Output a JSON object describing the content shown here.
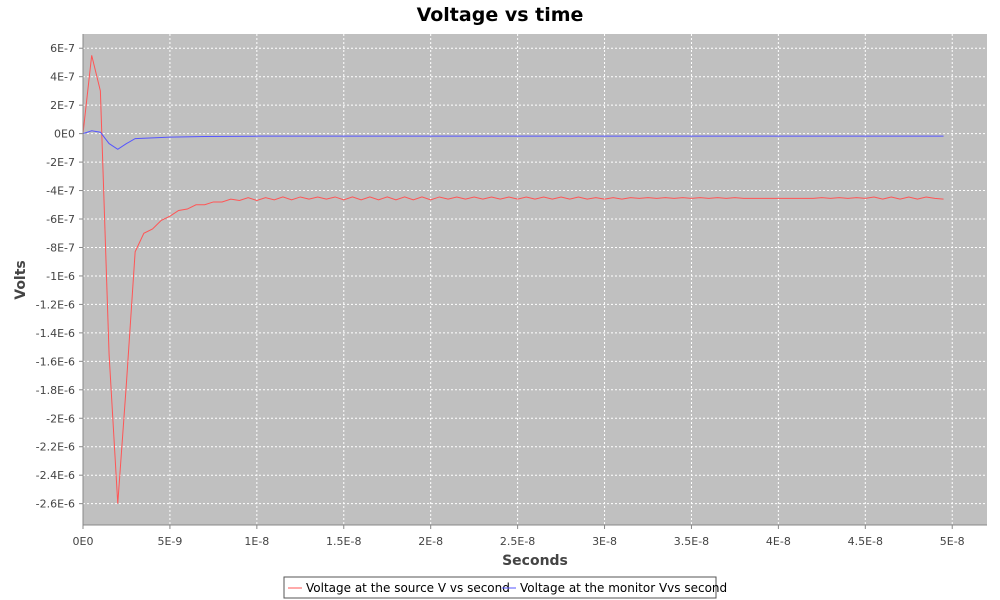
{
  "chart_data": {
    "type": "line",
    "title": "Voltage vs time",
    "xlabel": "Seconds",
    "ylabel": "Volts",
    "xlim": [
      0,
      5.2e-08
    ],
    "ylim": [
      -2.75e-06,
      7e-07
    ],
    "grid": true,
    "legend_position": "bottom",
    "x_ticks": [
      {
        "value": 0,
        "label": "0E0"
      },
      {
        "value": 5e-09,
        "label": "5E-9"
      },
      {
        "value": 1e-08,
        "label": "1E-8"
      },
      {
        "value": 1.5e-08,
        "label": "1.5E-8"
      },
      {
        "value": 2e-08,
        "label": "2E-8"
      },
      {
        "value": 2.5e-08,
        "label": "2.5E-8"
      },
      {
        "value": 3e-08,
        "label": "3E-8"
      },
      {
        "value": 3.5e-08,
        "label": "3.5E-8"
      },
      {
        "value": 4e-08,
        "label": "4E-8"
      },
      {
        "value": 4.5e-08,
        "label": "4.5E-8"
      },
      {
        "value": 5e-08,
        "label": "5E-8"
      }
    ],
    "y_ticks": [
      {
        "value": 6e-07,
        "label": "6E-7"
      },
      {
        "value": 4e-07,
        "label": "4E-7"
      },
      {
        "value": 2e-07,
        "label": "2E-7"
      },
      {
        "value": 0,
        "label": "0E0"
      },
      {
        "value": -2e-07,
        "label": "-2E-7"
      },
      {
        "value": -4e-07,
        "label": "-4E-7"
      },
      {
        "value": -6e-07,
        "label": "-6E-7"
      },
      {
        "value": -8e-07,
        "label": "-8E-7"
      },
      {
        "value": -1e-06,
        "label": "-1E-6"
      },
      {
        "value": -1.2e-06,
        "label": "-1.2E-6"
      },
      {
        "value": -1.4e-06,
        "label": "-1.4E-6"
      },
      {
        "value": -1.6e-06,
        "label": "-1.6E-6"
      },
      {
        "value": -1.8e-06,
        "label": "-1.8E-6"
      },
      {
        "value": -2e-06,
        "label": "-2E-6"
      },
      {
        "value": -2.2e-06,
        "label": "-2.2E-6"
      },
      {
        "value": -2.4e-06,
        "label": "-2.4E-6"
      },
      {
        "value": -2.6e-06,
        "label": "-2.6E-6"
      }
    ],
    "series": [
      {
        "name": "Voltage at the source V vs second",
        "color": "#ff5555",
        "x": [
          0,
          5e-10,
          1e-09,
          1.5e-09,
          2e-09,
          2.5e-09,
          3e-09,
          3.5e-09,
          4e-09,
          4.5e-09,
          5e-09,
          5.5e-09,
          6e-09,
          6.5e-09,
          7e-09,
          7.5e-09,
          8e-09,
          8.5e-09,
          9e-09,
          9.5e-09,
          1e-08,
          1.05e-08,
          1.1e-08,
          1.15e-08,
          1.2e-08,
          1.25e-08,
          1.3e-08,
          1.35e-08,
          1.4e-08,
          1.45e-08,
          1.5e-08,
          1.55e-08,
          1.6e-08,
          1.65e-08,
          1.7e-08,
          1.75e-08,
          1.8e-08,
          1.85e-08,
          1.9e-08,
          1.95e-08,
          2e-08,
          2.05e-08,
          2.1e-08,
          2.15e-08,
          2.2e-08,
          2.25e-08,
          2.3e-08,
          2.35e-08,
          2.4e-08,
          2.45e-08,
          2.5e-08,
          2.55e-08,
          2.6e-08,
          2.65e-08,
          2.7e-08,
          2.75e-08,
          2.8e-08,
          2.85e-08,
          2.9e-08,
          2.95e-08,
          3e-08,
          3.05e-08,
          3.1e-08,
          3.15e-08,
          3.2e-08,
          3.25e-08,
          3.3e-08,
          3.35e-08,
          3.4e-08,
          3.45e-08,
          3.5e-08,
          3.55e-08,
          3.6e-08,
          3.65e-08,
          3.7e-08,
          3.75e-08,
          3.8e-08,
          3.85e-08,
          3.9e-08,
          3.95e-08,
          4e-08,
          4.05e-08,
          4.1e-08,
          4.15e-08,
          4.2e-08,
          4.25e-08,
          4.3e-08,
          4.35e-08,
          4.4e-08,
          4.45e-08,
          4.5e-08,
          4.55e-08,
          4.6e-08,
          4.65e-08,
          4.7e-08,
          4.75e-08,
          4.8e-08,
          4.85e-08,
          4.9e-08,
          4.95e-08
        ],
        "y": [
          0,
          5.5e-07,
          3e-07,
          -1.55e-06,
          -2.6e-06,
          -1.75e-06,
          -8.3e-07,
          -7e-07,
          -6.7e-07,
          -6.1e-07,
          -5.8e-07,
          -5.4e-07,
          -5.3e-07,
          -5e-07,
          -5e-07,
          -4.8e-07,
          -4.8e-07,
          -4.6e-07,
          -4.7e-07,
          -4.5e-07,
          -4.7e-07,
          -4.5e-07,
          -4.65e-07,
          -4.45e-07,
          -4.65e-07,
          -4.45e-07,
          -4.6e-07,
          -4.45e-07,
          -4.6e-07,
          -4.45e-07,
          -4.65e-07,
          -4.45e-07,
          -4.65e-07,
          -4.45e-07,
          -4.65e-07,
          -4.45e-07,
          -4.65e-07,
          -4.45e-07,
          -4.65e-07,
          -4.45e-07,
          -4.65e-07,
          -4.45e-07,
          -4.6e-07,
          -4.45e-07,
          -4.6e-07,
          -4.45e-07,
          -4.6e-07,
          -4.45e-07,
          -4.6e-07,
          -4.45e-07,
          -4.6e-07,
          -4.45e-07,
          -4.6e-07,
          -4.45e-07,
          -4.6e-07,
          -4.45e-07,
          -4.6e-07,
          -4.45e-07,
          -4.6e-07,
          -4.5e-07,
          -4.6e-07,
          -4.5e-07,
          -4.6e-07,
          -4.5e-07,
          -4.55e-07,
          -4.5e-07,
          -4.55e-07,
          -4.5e-07,
          -4.55e-07,
          -4.5e-07,
          -4.55e-07,
          -4.5e-07,
          -4.55e-07,
          -4.5e-07,
          -4.55e-07,
          -4.5e-07,
          -4.55e-07,
          -4.55e-07,
          -4.55e-07,
          -4.55e-07,
          -4.55e-07,
          -4.55e-07,
          -4.55e-07,
          -4.55e-07,
          -4.55e-07,
          -4.5e-07,
          -4.55e-07,
          -4.5e-07,
          -4.55e-07,
          -4.5e-07,
          -4.55e-07,
          -4.45e-07,
          -4.6e-07,
          -4.45e-07,
          -4.6e-07,
          -4.45e-07,
          -4.6e-07,
          -4.45e-07,
          -4.55e-07,
          -4.6e-07
        ]
      },
      {
        "name": "Voltage at the monitor Vvs second",
        "color": "#5555ff",
        "x": [
          0,
          5e-10,
          1e-09,
          1.5e-09,
          2e-09,
          2.5e-09,
          3e-09,
          4e-09,
          5e-09,
          7e-09,
          1e-08,
          2e-08,
          3e-08,
          4e-08,
          4.95e-08
        ],
        "y": [
          0,
          2e-08,
          1e-08,
          -7e-08,
          -1.1e-07,
          -7e-08,
          -3.5e-08,
          -3e-08,
          -2.5e-08,
          -2e-08,
          -1.8e-08,
          -1.8e-08,
          -1.8e-08,
          -1.8e-08,
          -1.8e-08
        ]
      }
    ]
  }
}
